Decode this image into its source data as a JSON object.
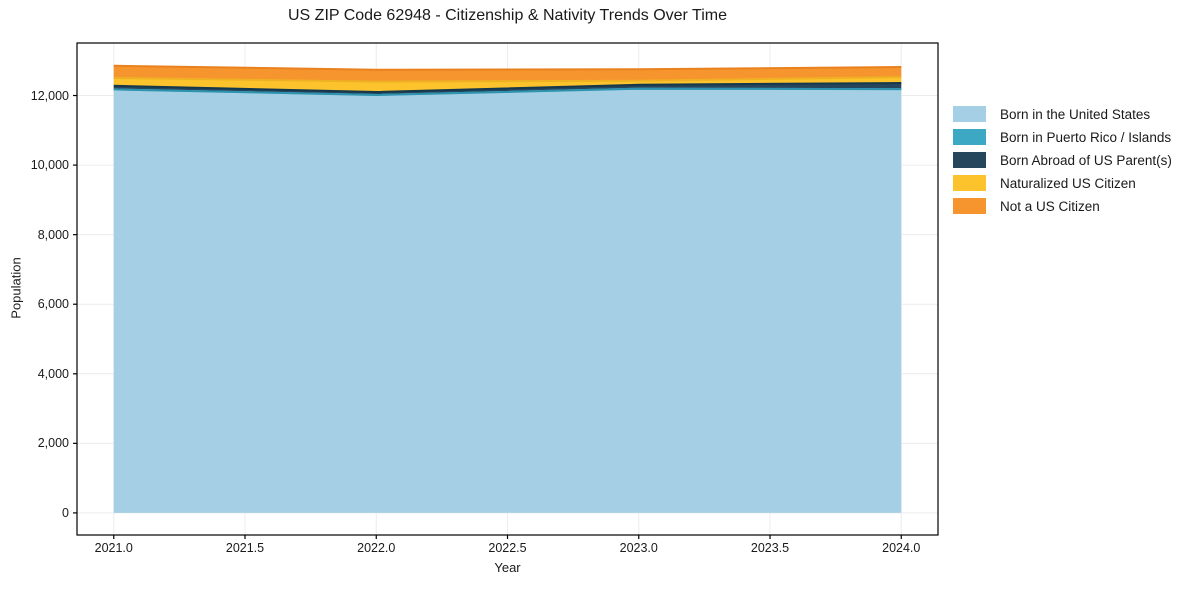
{
  "chart_data": {
    "type": "area",
    "stacked": true,
    "title": "US ZIP Code 62948 - Citizenship & Nativity Trends Over Time",
    "xlabel": "Year",
    "ylabel": "Population",
    "x": [
      2021,
      2022,
      2023,
      2024
    ],
    "series": [
      {
        "name": "Born in the United States",
        "color": "#a5cfe4",
        "edge": "#79b6d6",
        "values": [
          12175,
          12015,
          12195,
          12185
        ]
      },
      {
        "name": "Born in Puerto Rico / Islands",
        "color": "#3da8c4",
        "edge": "#2d93ae",
        "values": [
          0,
          0,
          0,
          0
        ]
      },
      {
        "name": "Born Abroad of US Parent(s)",
        "color": "#25465c",
        "edge": "#16384c",
        "values": [
          105,
          85,
          115,
          175
        ]
      },
      {
        "name": "Naturalized US Citizen",
        "color": "#fcc32d",
        "edge": "#f0b024",
        "values": [
          225,
          300,
          115,
          170
        ]
      },
      {
        "name": "Not a US Citizen",
        "color": "#f6952e",
        "edge": "#e8811e",
        "values": [
          350,
          340,
          330,
          290
        ]
      }
    ],
    "xlim": [
      2020.86,
      2024.14
    ],
    "ylim": [
      -635,
      13510
    ],
    "xticks": [
      {
        "v": 2021.0,
        "label": "2021.0"
      },
      {
        "v": 2021.5,
        "label": "2021.5"
      },
      {
        "v": 2022.0,
        "label": "2022.0"
      },
      {
        "v": 2022.5,
        "label": "2022.5"
      },
      {
        "v": 2023.0,
        "label": "2023.0"
      },
      {
        "v": 2023.5,
        "label": "2023.5"
      },
      {
        "v": 2024.0,
        "label": "2024.0"
      }
    ],
    "yticks": [
      {
        "v": 0,
        "label": "0"
      },
      {
        "v": 2000,
        "label": "2,000"
      },
      {
        "v": 4000,
        "label": "4,000"
      },
      {
        "v": 6000,
        "label": "6,000"
      },
      {
        "v": 8000,
        "label": "8,000"
      },
      {
        "v": 10000,
        "label": "10,000"
      },
      {
        "v": 12000,
        "label": "12,000"
      }
    ],
    "grid": true,
    "grid_color": "#ececec",
    "spine_color": "#000000",
    "legend_position": "right-outside"
  }
}
